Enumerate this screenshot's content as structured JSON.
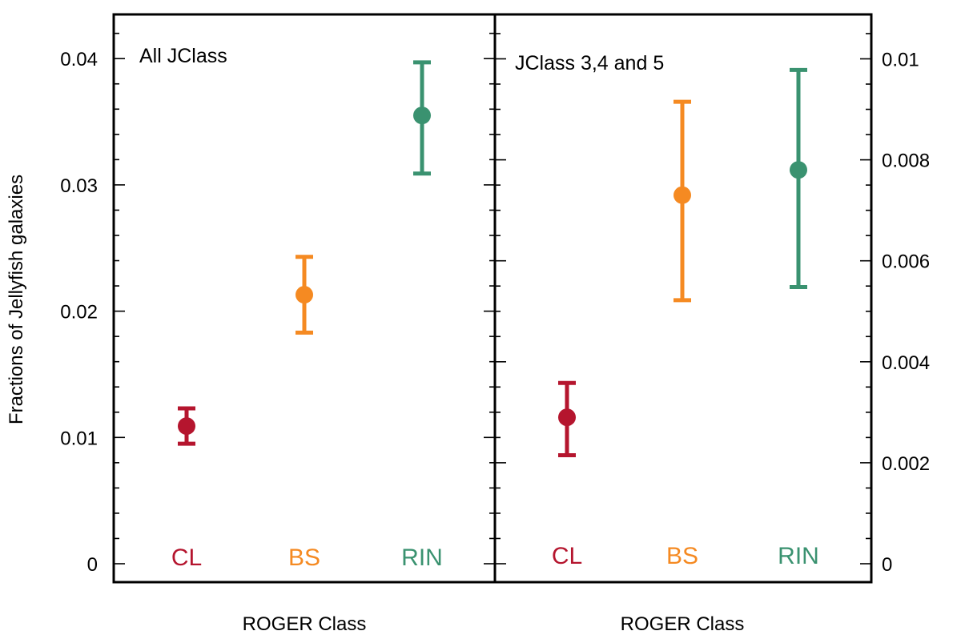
{
  "chart_data": [
    {
      "type": "scatter",
      "title": "All JClass",
      "xlabel": "ROGER Class",
      "ylabel": "Fractions of Jellyfish galaxies",
      "yaxis_side": "left",
      "ylim": [
        0,
        0.0435
      ],
      "yticks": [
        0,
        0.01,
        0.02,
        0.03,
        0.04
      ],
      "ytick_labels": [
        "0",
        "0.01",
        "0.02",
        "0.03",
        "0.04"
      ],
      "categories": [
        "CL",
        "BS",
        "RIN"
      ],
      "colors": [
        "#b5152e",
        "#f58a22",
        "#3a9270"
      ],
      "points": [
        {
          "category": "CL",
          "value": 0.0109,
          "err_low": 0.0095,
          "err_high": 0.0123
        },
        {
          "category": "BS",
          "value": 0.0213,
          "err_low": 0.0183,
          "err_high": 0.0243
        },
        {
          "category": "RIN",
          "value": 0.0355,
          "err_low": 0.0309,
          "err_high": 0.0397
        }
      ],
      "grid": false
    },
    {
      "type": "scatter",
      "title": "JClass 3,4 and 5",
      "xlabel": "ROGER Class",
      "ylabel": "",
      "yaxis_side": "right",
      "ylim": [
        0,
        0.01088
      ],
      "yticks": [
        0,
        0.002,
        0.004,
        0.006,
        0.008,
        0.01
      ],
      "ytick_labels": [
        "0",
        "0.002",
        "0.004",
        "0.006",
        "0.008",
        "0.01"
      ],
      "categories": [
        "CL",
        "BS",
        "RIN"
      ],
      "colors": [
        "#b5152e",
        "#f58a22",
        "#3a9270"
      ],
      "points": [
        {
          "category": "CL",
          "value": 0.0029,
          "err_low": 0.00215,
          "err_high": 0.00358
        },
        {
          "category": "BS",
          "value": 0.0073,
          "err_low": 0.00522,
          "err_high": 0.00915
        },
        {
          "category": "RIN",
          "value": 0.0078,
          "err_low": 0.00548,
          "err_high": 0.00978
        }
      ],
      "grid": false
    }
  ]
}
